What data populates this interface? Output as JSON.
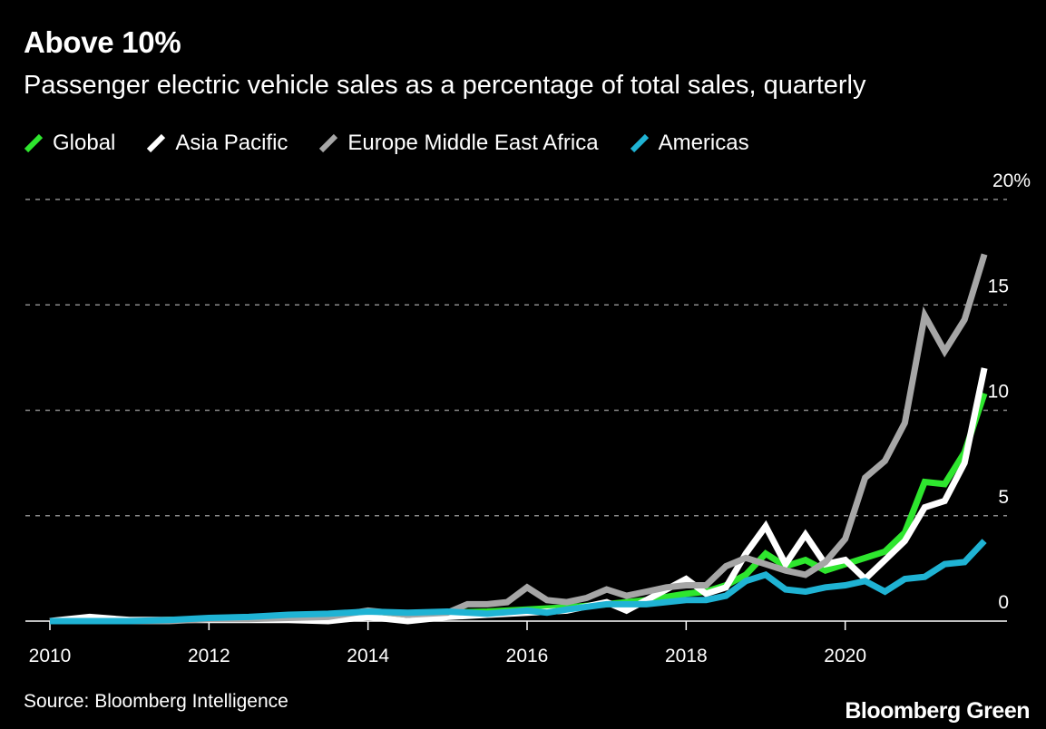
{
  "title": "Above 10%",
  "subtitle": "Passenger electric vehicle sales as a percentage of total sales, quarterly",
  "source": "Source: Bloomberg Intelligence",
  "brand": "Bloomberg Green",
  "colors": {
    "background": "#000000",
    "global": "#2ee62e",
    "asia_pacific": "#ffffff",
    "emea": "#a6a6a6",
    "americas": "#1fb3d4",
    "grid": "#8a8a8a"
  },
  "chart_data": {
    "type": "line",
    "title": "Above 10%",
    "subtitle": "Passenger electric vehicle sales as a percentage of total sales, quarterly",
    "xlabel": "",
    "ylabel": "",
    "xlim": [
      2010,
      2022
    ],
    "ylim": [
      0,
      20
    ],
    "x_ticks": [
      2010,
      2012,
      2014,
      2016,
      2018,
      2020
    ],
    "x_tick_labels": [
      "2010",
      "2012",
      "2014",
      "2016",
      "2018",
      "2020"
    ],
    "y_ticks": [
      0,
      5,
      10,
      15,
      20
    ],
    "y_tick_labels": [
      "0",
      "5",
      "10",
      "15",
      "20%"
    ],
    "grid": "horizontal dashed",
    "legend_position": "top-left",
    "series": [
      {
        "name": "Global",
        "color": "#2ee62e",
        "points": [
          [
            2010.0,
            0.0
          ],
          [
            2010.5,
            0.0
          ],
          [
            2011.0,
            0.0
          ],
          [
            2011.5,
            0.05
          ],
          [
            2012.0,
            0.1
          ],
          [
            2012.5,
            0.12
          ],
          [
            2013.0,
            0.18
          ],
          [
            2013.5,
            0.22
          ],
          [
            2014.0,
            0.28
          ],
          [
            2014.5,
            0.33
          ],
          [
            2015.0,
            0.4
          ],
          [
            2015.5,
            0.45
          ],
          [
            2016.0,
            0.55
          ],
          [
            2016.5,
            0.65
          ],
          [
            2017.0,
            0.8
          ],
          [
            2017.5,
            1.0
          ],
          [
            2018.0,
            1.3
          ],
          [
            2018.25,
            1.4
          ],
          [
            2018.5,
            1.7
          ],
          [
            2018.75,
            2.2
          ],
          [
            2019.0,
            3.2
          ],
          [
            2019.25,
            2.6
          ],
          [
            2019.5,
            2.9
          ],
          [
            2019.75,
            2.4
          ],
          [
            2020.0,
            2.7
          ],
          [
            2020.25,
            3.0
          ],
          [
            2020.5,
            3.3
          ],
          [
            2020.75,
            4.2
          ],
          [
            2021.0,
            6.6
          ],
          [
            2021.25,
            6.5
          ],
          [
            2021.5,
            8.0
          ],
          [
            2021.75,
            10.8
          ]
        ]
      },
      {
        "name": "Asia Pacific",
        "color": "#ffffff",
        "points": [
          [
            2010.0,
            0.0
          ],
          [
            2010.5,
            0.2
          ],
          [
            2011.0,
            0.05
          ],
          [
            2011.5,
            0.05
          ],
          [
            2012.0,
            0.05
          ],
          [
            2012.5,
            0.05
          ],
          [
            2013.0,
            0.05
          ],
          [
            2013.5,
            0.0
          ],
          [
            2014.0,
            0.2
          ],
          [
            2014.5,
            0.0
          ],
          [
            2015.0,
            0.2
          ],
          [
            2015.5,
            0.3
          ],
          [
            2016.0,
            0.4
          ],
          [
            2016.5,
            0.5
          ],
          [
            2017.0,
            0.9
          ],
          [
            2017.25,
            0.5
          ],
          [
            2017.5,
            1.0
          ],
          [
            2018.0,
            2.0
          ],
          [
            2018.25,
            1.3
          ],
          [
            2018.5,
            1.6
          ],
          [
            2018.75,
            3.2
          ],
          [
            2019.0,
            4.5
          ],
          [
            2019.25,
            2.7
          ],
          [
            2019.5,
            4.1
          ],
          [
            2019.75,
            2.7
          ],
          [
            2020.0,
            2.9
          ],
          [
            2020.25,
            2.0
          ],
          [
            2020.5,
            2.9
          ],
          [
            2020.75,
            3.8
          ],
          [
            2021.0,
            5.4
          ],
          [
            2021.25,
            5.7
          ],
          [
            2021.5,
            7.5
          ],
          [
            2021.75,
            12.0
          ]
        ]
      },
      {
        "name": "Europe Middle East Africa",
        "color": "#a6a6a6",
        "points": [
          [
            2010.0,
            0.0
          ],
          [
            2010.5,
            0.0
          ],
          [
            2011.0,
            0.0
          ],
          [
            2011.5,
            0.0
          ],
          [
            2012.0,
            0.1
          ],
          [
            2012.5,
            0.1
          ],
          [
            2013.0,
            0.15
          ],
          [
            2013.5,
            0.2
          ],
          [
            2014.0,
            0.5
          ],
          [
            2014.5,
            0.3
          ],
          [
            2015.0,
            0.4
          ],
          [
            2015.25,
            0.8
          ],
          [
            2015.5,
            0.8
          ],
          [
            2015.75,
            0.9
          ],
          [
            2016.0,
            1.6
          ],
          [
            2016.25,
            1.0
          ],
          [
            2016.5,
            0.9
          ],
          [
            2016.75,
            1.1
          ],
          [
            2017.0,
            1.5
          ],
          [
            2017.25,
            1.2
          ],
          [
            2017.5,
            1.4
          ],
          [
            2017.75,
            1.6
          ],
          [
            2018.0,
            1.7
          ],
          [
            2018.25,
            1.7
          ],
          [
            2018.5,
            2.6
          ],
          [
            2018.75,
            3.0
          ],
          [
            2019.0,
            2.7
          ],
          [
            2019.25,
            2.4
          ],
          [
            2019.5,
            2.2
          ],
          [
            2019.75,
            2.8
          ],
          [
            2020.0,
            3.9
          ],
          [
            2020.25,
            6.8
          ],
          [
            2020.5,
            7.6
          ],
          [
            2020.75,
            9.4
          ],
          [
            2021.0,
            14.5
          ],
          [
            2021.25,
            12.8
          ],
          [
            2021.5,
            14.3
          ],
          [
            2021.75,
            17.4
          ]
        ]
      },
      {
        "name": "Americas",
        "color": "#1fb3d4",
        "points": [
          [
            2010.0,
            0.0
          ],
          [
            2010.5,
            0.0
          ],
          [
            2011.0,
            0.0
          ],
          [
            2011.5,
            0.05
          ],
          [
            2012.0,
            0.15
          ],
          [
            2012.5,
            0.2
          ],
          [
            2013.0,
            0.3
          ],
          [
            2013.5,
            0.35
          ],
          [
            2014.0,
            0.45
          ],
          [
            2014.5,
            0.4
          ],
          [
            2015.0,
            0.45
          ],
          [
            2015.5,
            0.35
          ],
          [
            2016.0,
            0.5
          ],
          [
            2016.25,
            0.4
          ],
          [
            2016.5,
            0.55
          ],
          [
            2017.0,
            0.8
          ],
          [
            2017.5,
            0.8
          ],
          [
            2018.0,
            1.0
          ],
          [
            2018.25,
            1.0
          ],
          [
            2018.5,
            1.2
          ],
          [
            2018.75,
            1.9
          ],
          [
            2019.0,
            2.2
          ],
          [
            2019.25,
            1.5
          ],
          [
            2019.5,
            1.4
          ],
          [
            2019.75,
            1.6
          ],
          [
            2020.0,
            1.7
          ],
          [
            2020.25,
            1.9
          ],
          [
            2020.5,
            1.4
          ],
          [
            2020.75,
            2.0
          ],
          [
            2021.0,
            2.1
          ],
          [
            2021.25,
            2.7
          ],
          [
            2021.5,
            2.8
          ],
          [
            2021.75,
            3.8
          ]
        ]
      }
    ]
  }
}
